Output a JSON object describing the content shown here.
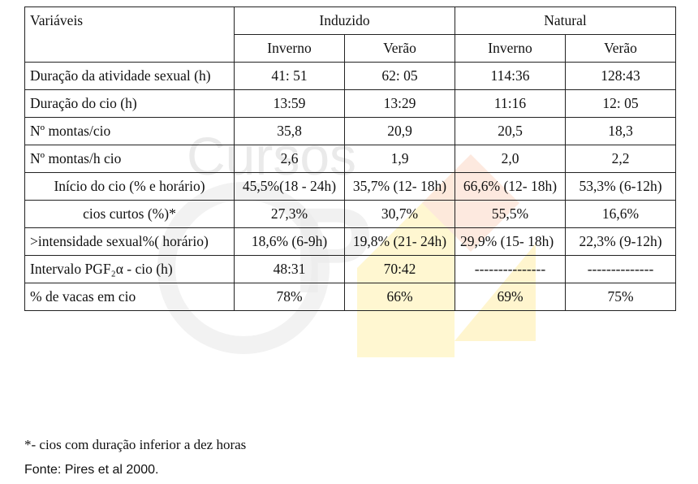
{
  "header": {
    "variaveis": "Variáveis",
    "group_induzido": "Induzido",
    "group_natural": "Natural",
    "subcols": [
      "Inverno",
      "Verão",
      "Inverno",
      "Verão"
    ]
  },
  "rows": [
    {
      "label": "Duração da atividade sexual (h)",
      "values": [
        "41: 51",
        "62: 05",
        "114:36",
        "128:43"
      ]
    },
    {
      "label": "Duração do cio (h)",
      "values": [
        "13:59",
        "13:29",
        "11:16",
        "12: 05"
      ]
    },
    {
      "label": "Nº montas/cio",
      "values": [
        "35,8",
        "20,9",
        "20,5",
        "18,3"
      ]
    },
    {
      "label": "Nº montas/h cio",
      "values": [
        "2,6",
        "1,9",
        "2,0",
        "2,2"
      ]
    },
    {
      "label": "Início do cio (% e horário)",
      "values": [
        "45,5%(18 - 24h)",
        "35,7% (12- 18h)",
        "66,6% (12- 18h)",
        "53,3% (6-12h)"
      ]
    },
    {
      "label": "cios curtos (%)*",
      "values": [
        "27,3%",
        "30,7%",
        "55,5%",
        "16,6%"
      ]
    },
    {
      "label": ">intensidade sexual%( horário)",
      "values": [
        "18,6% (6-9h)",
        "19,8% (21- 24h)",
        "29,9% (15- 18h)",
        "22,3% (9-12h)"
      ]
    },
    {
      "label": "Intervalo PGF₂α - cio (h)",
      "values": [
        "48:31",
        "70:42",
        "---------------",
        "--------------"
      ]
    },
    {
      "label": "% de vacas em cio",
      "values": [
        "78%",
        "66%",
        "69%",
        "75%"
      ]
    }
  ],
  "notes": {
    "footnote": "*- cios com duração inferior a dez horas",
    "source": "Fonte: Pires et al 2000."
  }
}
